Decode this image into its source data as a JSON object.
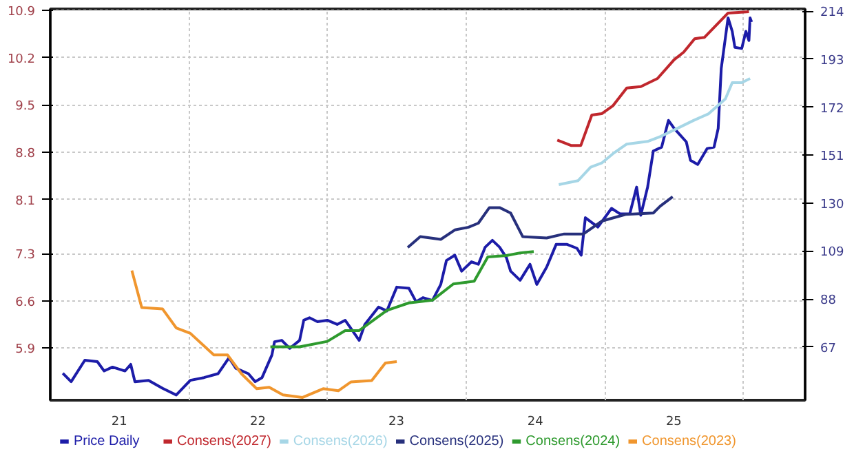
{
  "chart_data": {
    "type": "line",
    "xlim": [
      "2021-01-01",
      "2026-06-13"
    ],
    "xticks": [
      {
        "value": "2021-07-02",
        "label": "21"
      },
      {
        "value": "2022-07-02",
        "label": "22"
      },
      {
        "value": "2023-07-02",
        "label": "23"
      },
      {
        "value": "2024-07-02",
        "label": "24"
      },
      {
        "value": "2025-07-02",
        "label": "25"
      },
      {
        "value": "2022-01-01",
        "label": null
      },
      {
        "value": "2023-01-01",
        "label": null
      },
      {
        "value": "2024-01-01",
        "label": null
      },
      {
        "value": "2025-01-01",
        "label": null
      },
      {
        "value": "2026-01-01",
        "label": null
      }
    ],
    "ylim": [
      5.13,
      10.92
    ],
    "yticks": [
      5.9,
      6.6,
      7.3,
      8.1,
      8.8,
      9.5,
      10.2,
      10.9
    ],
    "y2lim": [
      43.7,
      215
    ],
    "y2ticks": [
      67,
      88,
      109,
      130,
      151,
      172,
      193,
      214
    ],
    "grid": true,
    "legend": "bottom",
    "series": [
      {
        "name": "Price Daily",
        "color": "#1c1ca8",
        "axis": "y2",
        "x": [
          "2021-02-03",
          "2021-02-25",
          "2021-04-02",
          "2021-05-05",
          "2021-05-23",
          "2021-06-14",
          "2021-07-17",
          "2021-08-01",
          "2021-08-12",
          "2021-09-17",
          "2021-10-24",
          "2021-11-29",
          "2022-01-05",
          "2022-02-10",
          "2022-03-19",
          "2022-04-17",
          "2022-05-05",
          "2022-06-07",
          "2022-06-25",
          "2022-07-13",
          "2022-08-08",
          "2022-08-15",
          "2022-09-03",
          "2022-09-24",
          "2022-10-20",
          "2022-10-31",
          "2022-11-15",
          "2022-12-06",
          "2023-01-01",
          "2023-01-27",
          "2023-02-17",
          "2023-03-04",
          "2023-03-26",
          "2023-04-10",
          "2023-05-16",
          "2023-06-07",
          "2023-07-03",
          "2023-08-04",
          "2023-08-23",
          "2023-09-10",
          "2023-10-05",
          "2023-10-27",
          "2023-11-11",
          "2023-12-03",
          "2023-12-21",
          "2024-01-16",
          "2024-02-03",
          "2024-02-21",
          "2024-03-11",
          "2024-03-30",
          "2024-04-17",
          "2024-04-28",
          "2024-05-23",
          "2024-06-18",
          "2024-07-06",
          "2024-08-01",
          "2024-08-26",
          "2024-09-24",
          "2024-10-20",
          "2024-10-31",
          "2024-11-11",
          "2024-12-14",
          "2025-01-19",
          "2025-02-10",
          "2025-03-08",
          "2025-03-26",
          "2025-04-06",
          "2025-04-24",
          "2025-05-09",
          "2025-05-31",
          "2025-06-18",
          "2025-07-03",
          "2025-08-04",
          "2025-08-15",
          "2025-09-03",
          "2025-09-28",
          "2025-10-16",
          "2025-10-27",
          "2025-11-04",
          "2025-11-22",
          "2025-12-03",
          "2025-12-10",
          "2025-12-28",
          "2026-01-08",
          "2026-01-16",
          "2026-01-19",
          "2026-01-23"
        ],
        "values": [
          55.5,
          51.8,
          61.2,
          60.6,
          56.5,
          58.2,
          56.5,
          59.4,
          51.8,
          52.4,
          48.9,
          46.0,
          52.4,
          53.6,
          55.3,
          62.3,
          57.7,
          55.3,
          51.8,
          53.6,
          63.5,
          69.3,
          69.9,
          66.4,
          69.9,
          78.7,
          79.8,
          78.1,
          78.7,
          76.9,
          78.7,
          75.2,
          69.9,
          76.9,
          84.5,
          82.8,
          93.2,
          92.7,
          86.8,
          88.6,
          87.4,
          94.4,
          104.9,
          107.2,
          100.2,
          104.3,
          103.2,
          110.7,
          113.7,
          110.7,
          106.1,
          100.2,
          96.2,
          103.2,
          94.4,
          102.0,
          111.9,
          111.9,
          110.2,
          107.2,
          123.6,
          119.5,
          127.7,
          125.3,
          125.3,
          137.0,
          124.7,
          137.0,
          152.8,
          154.5,
          166.2,
          162.7,
          156.8,
          148.7,
          146.9,
          153.9,
          154.5,
          162.7,
          188.9,
          211.1,
          205.2,
          198.2,
          197.7,
          205.2,
          201.2,
          211.1,
          209.3
        ]
      },
      {
        "name": "Consens(2027)",
        "color": "#c0272d",
        "x": [
          "2024-08-29",
          "2024-10-04",
          "2024-10-30",
          "2024-11-28",
          "2024-12-24",
          "2025-01-23",
          "2025-02-28",
          "2025-04-06",
          "2025-05-20",
          "2025-07-03",
          "2025-07-28",
          "2025-08-26",
          "2025-09-21",
          "2025-11-22",
          "2026-01-16"
        ],
        "values": [
          8.98,
          8.9,
          8.9,
          9.35,
          9.37,
          9.49,
          9.75,
          9.77,
          9.89,
          10.17,
          10.28,
          10.48,
          10.5,
          10.86,
          10.88
        ]
      },
      {
        "name": "Consens(2026)",
        "color": "#a6d6e6",
        "x": [
          "2024-09-02",
          "2024-10-23",
          "2024-11-25",
          "2024-12-24",
          "2025-01-23",
          "2025-02-28",
          "2025-04-24",
          "2025-05-27",
          "2025-07-03",
          "2025-08-23",
          "2025-10-02",
          "2025-11-15",
          "2025-12-03",
          "2025-12-28",
          "2026-01-19"
        ],
        "values": [
          8.32,
          8.38,
          8.58,
          8.64,
          8.78,
          8.92,
          8.96,
          9.03,
          9.13,
          9.27,
          9.37,
          9.59,
          9.83,
          9.83,
          9.89
        ]
      },
      {
        "name": "Consens(2025)",
        "color": "#27307c",
        "x": [
          "2023-08-01",
          "2023-09-03",
          "2023-10-27",
          "2023-12-03",
          "2024-01-08",
          "2024-02-03",
          "2024-03-03",
          "2024-03-30",
          "2024-04-28",
          "2024-05-30",
          "2024-08-01",
          "2024-09-16",
          "2024-11-06",
          "2024-12-24",
          "2025-02-25",
          "2025-05-09",
          "2025-05-27",
          "2025-06-29"
        ],
        "values": [
          7.39,
          7.55,
          7.51,
          7.65,
          7.69,
          7.75,
          7.98,
          7.98,
          7.9,
          7.55,
          7.53,
          7.59,
          7.59,
          7.78,
          7.88,
          7.9,
          8.0,
          8.14
        ]
      },
      {
        "name": "Consens(2024)",
        "color": "#2e9a2e",
        "x": [
          "2022-08-04",
          "2022-10-20",
          "2023-01-01",
          "2023-02-17",
          "2023-03-26",
          "2023-06-07",
          "2023-08-04",
          "2023-10-05",
          "2023-11-29",
          "2024-01-23",
          "2024-02-28",
          "2024-04-17",
          "2024-05-23",
          "2024-06-28"
        ],
        "values": [
          5.92,
          5.92,
          6.0,
          6.16,
          6.16,
          6.46,
          6.57,
          6.61,
          6.85,
          6.89,
          7.25,
          7.27,
          7.31,
          7.33
        ]
      },
      {
        "name": "Consens(2023)",
        "color": "#f0962e",
        "x": [
          "2021-08-04",
          "2021-08-30",
          "2021-10-24",
          "2021-11-29",
          "2022-01-05",
          "2022-03-08",
          "2022-04-13",
          "2022-05-20",
          "2022-06-29",
          "2022-08-01",
          "2022-09-06",
          "2022-10-27",
          "2022-12-21",
          "2023-01-30",
          "2023-03-04",
          "2023-04-28",
          "2023-06-03",
          "2023-07-03"
        ],
        "values": [
          7.05,
          6.5,
          6.48,
          6.2,
          6.12,
          5.8,
          5.8,
          5.52,
          5.3,
          5.32,
          5.21,
          5.17,
          5.3,
          5.27,
          5.4,
          5.42,
          5.68,
          5.7
        ]
      }
    ]
  }
}
